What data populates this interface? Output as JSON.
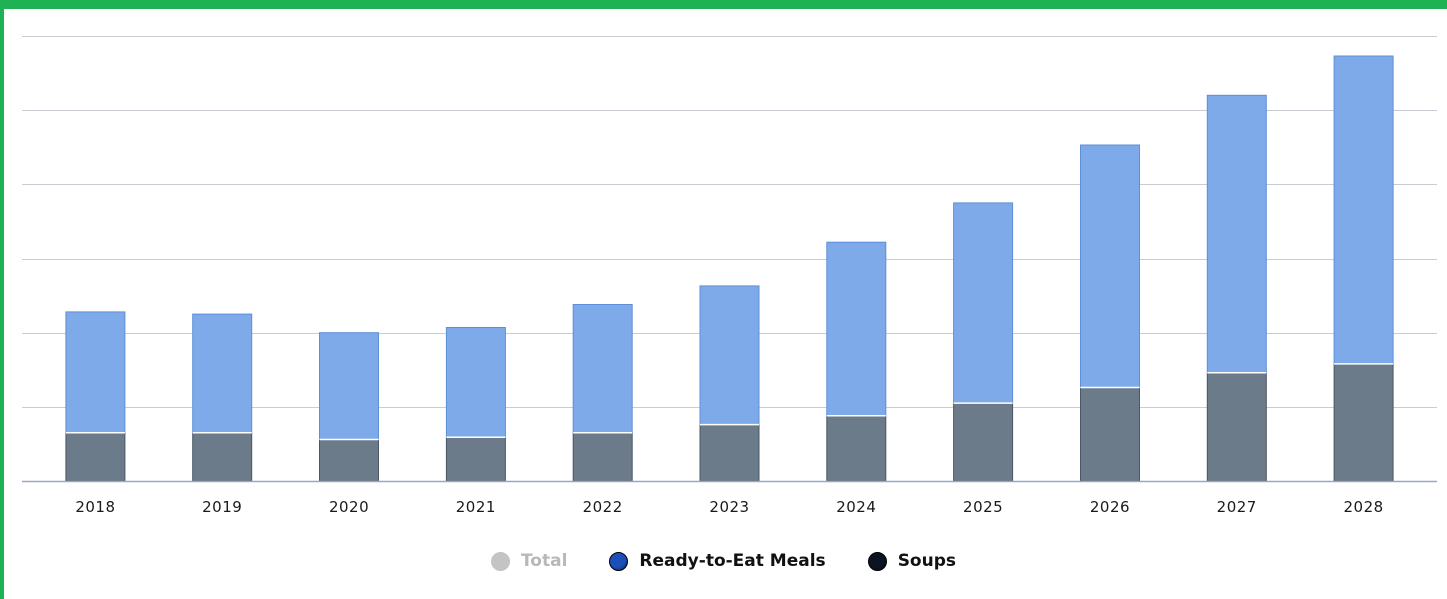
{
  "chart_data": {
    "type": "bar",
    "stacked": true,
    "categories": [
      "2018",
      "2019",
      "2020",
      "2021",
      "2022",
      "2023",
      "2024",
      "2025",
      "2026",
      "2027",
      "2028"
    ],
    "series": [
      {
        "name": "Soups",
        "color": "#6b7b89",
        "values": [
          0.65,
          0.65,
          0.56,
          0.59,
          0.65,
          0.76,
          0.88,
          1.05,
          1.26,
          1.46,
          1.58
        ]
      },
      {
        "name": "Ready-to-Eat Meals",
        "color": "#7eaaea",
        "values": [
          1.63,
          1.6,
          1.44,
          1.48,
          1.73,
          1.87,
          2.34,
          2.7,
          3.27,
          3.74,
          4.15
        ]
      }
    ],
    "legend": [
      {
        "name": "Total",
        "color": "#c4c4c4",
        "visible": false
      },
      {
        "name": "Ready-to-Eat Meals",
        "color": "#1d4fb8",
        "visible": true
      },
      {
        "name": "Soups",
        "color": "#0b1424",
        "visible": true
      }
    ],
    "ylim": [
      0,
      6
    ],
    "grid": true,
    "y_tick_labels_shown": false,
    "legend_position": "bottom",
    "title": "",
    "xlabel": "",
    "ylabel": ""
  }
}
